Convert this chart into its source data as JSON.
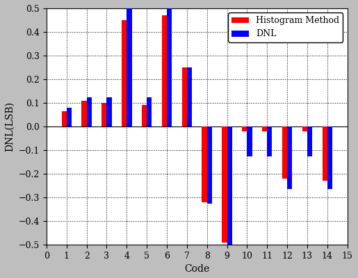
{
  "codes": [
    1,
    2,
    3,
    4,
    5,
    6,
    7,
    8,
    9,
    10,
    11,
    12,
    13,
    14
  ],
  "histogram_method": [
    0.065,
    0.11,
    0.1,
    0.45,
    0.09,
    0.47,
    0.25,
    -0.32,
    -0.49,
    -0.02,
    -0.02,
    -0.22,
    -0.02,
    -0.23
  ],
  "dnl": [
    0.08,
    0.125,
    0.125,
    0.5,
    0.125,
    0.5,
    0.25,
    -0.325,
    -0.5,
    -0.125,
    -0.125,
    -0.265,
    -0.125,
    -0.265
  ],
  "xlabel": "Code",
  "ylabel": "DNL(LSB)",
  "ylim": [
    -0.5,
    0.5
  ],
  "xlim": [
    0,
    15
  ],
  "xticks": [
    0,
    1,
    2,
    3,
    4,
    5,
    6,
    7,
    8,
    9,
    10,
    11,
    12,
    13,
    14,
    15
  ],
  "yticks": [
    -0.5,
    -0.4,
    -0.3,
    -0.2,
    -0.1,
    0.0,
    0.1,
    0.2,
    0.3,
    0.4,
    0.5
  ],
  "color_histogram": "#ff0000",
  "color_dnl": "#0000ff",
  "legend_labels": [
    "Histogram Method",
    "DNL"
  ],
  "bar_width": 0.25,
  "background_color": "#bebebe",
  "plot_bg_color": "#ffffff",
  "axis_fontsize": 10,
  "tick_fontsize": 9
}
